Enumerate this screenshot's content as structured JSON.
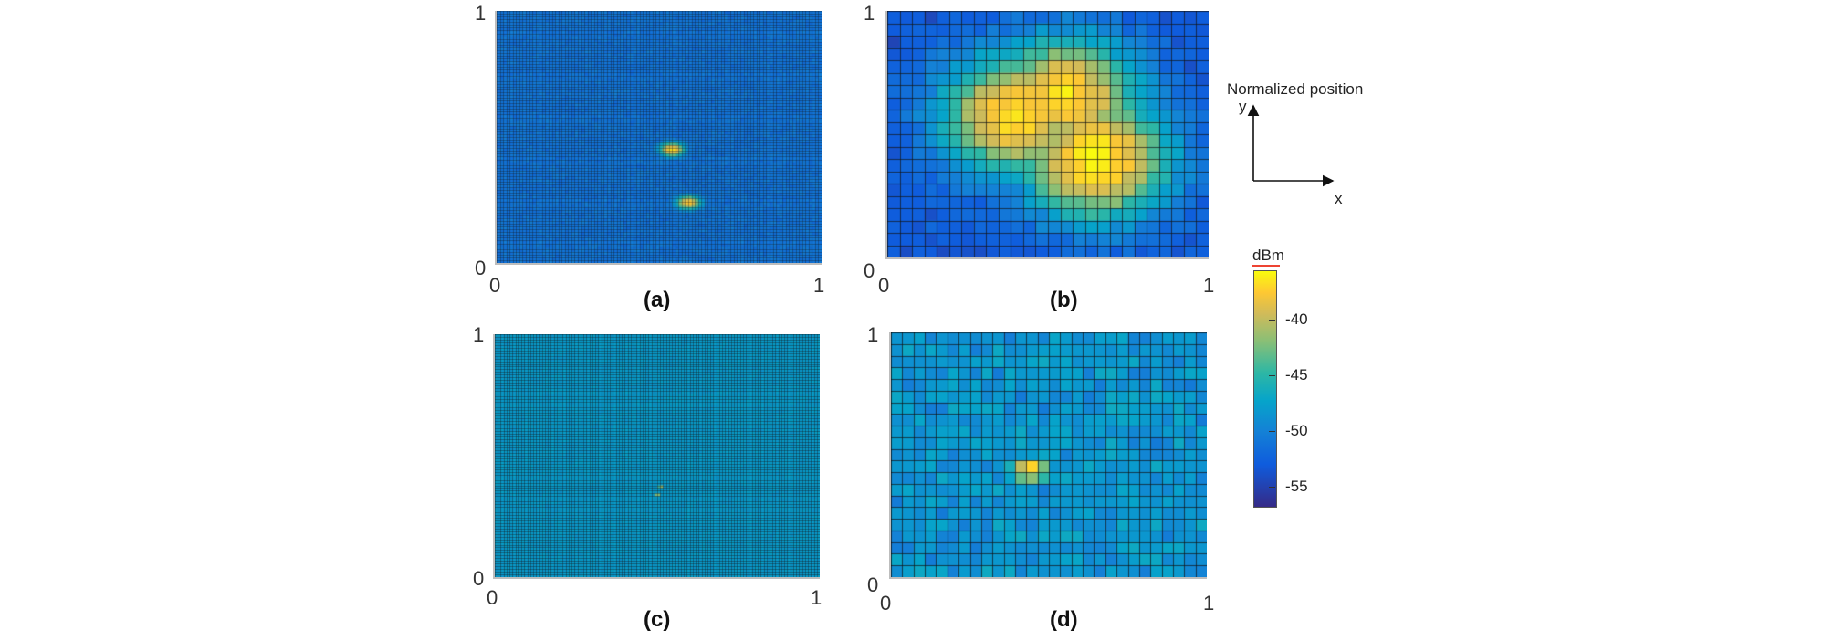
{
  "chart_data": [
    {
      "type": "heatmap",
      "panel_label": "(a)",
      "x_ticks": [
        "0",
        "1"
      ],
      "y_ticks": [
        "0",
        "1"
      ],
      "xlim": [
        0,
        1
      ],
      "ylim": [
        0,
        1
      ],
      "grid_resolution": "fine (~100 x 90 cells)",
      "background_level_dBm": -53,
      "hotspots": [
        {
          "x": 0.54,
          "y": 0.45,
          "peak_dBm": -37
        },
        {
          "x": 0.59,
          "y": 0.24,
          "peak_dBm": -38
        }
      ]
    },
    {
      "type": "heatmap",
      "panel_label": "(b)",
      "x_ticks": [
        "0",
        "1"
      ],
      "y_ticks": [
        "0",
        "1"
      ],
      "xlim": [
        0,
        1
      ],
      "ylim": [
        0,
        1
      ],
      "grid_resolution": "coarse (~26 x 20 cells)",
      "background_level_dBm": -55,
      "hotspots": [
        {
          "x": 0.4,
          "y": 0.58,
          "peak_dBm": -37
        },
        {
          "x": 0.55,
          "y": 0.65,
          "peak_dBm": -37
        },
        {
          "x": 0.65,
          "y": 0.4,
          "peak_dBm": -36
        }
      ]
    },
    {
      "type": "heatmap",
      "panel_label": "(c)",
      "x_ticks": [
        "0",
        "1"
      ],
      "y_ticks": [
        "0",
        "1"
      ],
      "xlim": [
        0,
        1
      ],
      "ylim": [
        0,
        1
      ],
      "grid_resolution": "very fine (~110 x 90 cells)",
      "background_level_dBm": -50,
      "hotspots": [
        {
          "x": 0.51,
          "y": 0.37,
          "peak_dBm": -37
        },
        {
          "x": 0.5,
          "y": 0.34,
          "peak_dBm": -38
        }
      ]
    },
    {
      "type": "heatmap",
      "panel_label": "(d)",
      "x_ticks": [
        "0",
        "1"
      ],
      "y_ticks": [
        "0",
        "1"
      ],
      "xlim": [
        0,
        1
      ],
      "ylim": [
        0,
        1
      ],
      "grid_resolution": "medium (~28 x 21 cells)",
      "background_level_dBm": -51,
      "hotspots": [
        {
          "x": 0.44,
          "y": 0.44,
          "peak_dBm": -36
        }
      ]
    }
  ],
  "colorbar": {
    "unit": "dBm",
    "ticks": [
      "-40",
      "-45",
      "-50",
      "-55"
    ],
    "range": [
      -57,
      -36
    ],
    "colormap": "parula"
  },
  "axes_legend": {
    "title": "Normalized position",
    "x_label": "x",
    "y_label": "y"
  },
  "colors": {
    "low": "#352a87",
    "high": "#f9fb0e",
    "grid_line": "#1a1a1a"
  }
}
